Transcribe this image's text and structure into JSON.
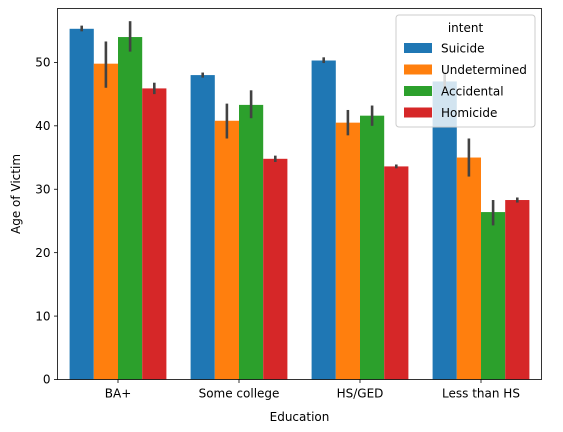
{
  "chart_data": {
    "type": "bar",
    "title": "",
    "xlabel": "Education",
    "ylabel": "Age of Victim",
    "categories": [
      "BA+",
      "Some college",
      "HS/GED",
      "Less than HS"
    ],
    "ylim": [
      0,
      58.5
    ],
    "yticks": [
      0,
      10,
      20,
      30,
      40,
      50
    ],
    "grid": false,
    "legend": {
      "title": "intent",
      "placement": "top-right"
    },
    "series": [
      {
        "name": "Suicide",
        "color": "#1f77b4",
        "values": [
          55.3,
          48.0,
          50.3,
          47.0
        ],
        "err_low": [
          54.9,
          47.6,
          49.9,
          45.5
        ],
        "err_high": [
          55.8,
          48.4,
          50.8,
          48.5
        ]
      },
      {
        "name": "Undetermined",
        "color": "#ff7f0e",
        "values": [
          49.8,
          40.8,
          40.5,
          35.0
        ],
        "err_low": [
          46.0,
          38.0,
          38.5,
          32.0
        ],
        "err_high": [
          53.3,
          43.5,
          42.5,
          38.0
        ]
      },
      {
        "name": "Accidental",
        "color": "#2ca02c",
        "values": [
          54.0,
          43.3,
          41.6,
          26.4
        ],
        "err_low": [
          51.7,
          41.2,
          40.0,
          24.3
        ],
        "err_high": [
          56.5,
          45.6,
          43.2,
          28.3
        ]
      },
      {
        "name": "Homicide",
        "color": "#d62728",
        "values": [
          45.9,
          34.8,
          33.6,
          28.3
        ],
        "err_low": [
          45.0,
          34.3,
          33.3,
          27.9
        ],
        "err_high": [
          46.8,
          35.3,
          33.9,
          28.7
        ]
      }
    ],
    "error_bar_color": "#424242"
  }
}
